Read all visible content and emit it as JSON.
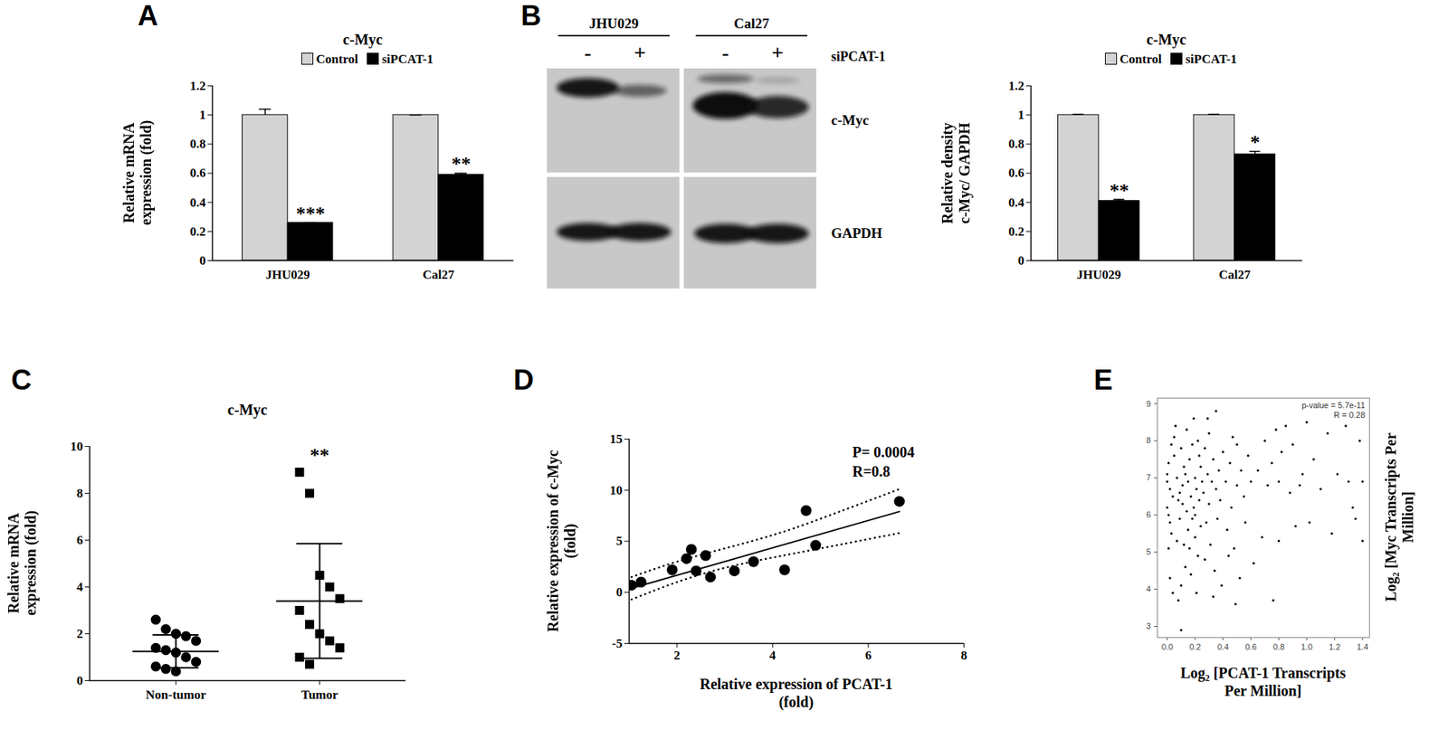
{
  "chart_data": [
    {
      "panel": "A",
      "type": "bar",
      "title": "c-Myc",
      "categories": [
        "JHU029",
        "Cal27"
      ],
      "series": [
        {
          "name": "Control",
          "color": "#d3d3d3",
          "values": [
            1,
            1
          ],
          "errors": [
            0.04,
            0
          ]
        },
        {
          "name": "siPCAT-1",
          "color": "#000000",
          "values": [
            0.26,
            0.59
          ],
          "errors": [
            0,
            0.01
          ],
          "annotations": [
            "***",
            "**"
          ]
        }
      ],
      "ylabel": "Relative mRNA\nexpression (fold)",
      "ylim": [
        0,
        1.2
      ],
      "yticks": [
        0,
        0.2,
        0.4,
        0.6,
        0.8,
        1,
        1.2
      ],
      "legend": "top"
    },
    {
      "panel": "B",
      "type": "bar",
      "title": "c-Myc",
      "categories": [
        "JHU029",
        "Cal27"
      ],
      "series": [
        {
          "name": "Control",
          "color": "#d3d3d3",
          "values": [
            1,
            1
          ],
          "errors": [
            0.005,
            0.005
          ]
        },
        {
          "name": "siPCAT-1",
          "color": "#000000",
          "values": [
            0.41,
            0.73
          ],
          "errors": [
            0.01,
            0.02
          ],
          "annotations": [
            "**",
            "*"
          ]
        }
      ],
      "ylabel": "Relative density\nc-Myc/ GAPDH",
      "ylim": [
        0,
        1.2
      ],
      "yticks": [
        0,
        0.2,
        0.4,
        0.6,
        0.8,
        1,
        1.2
      ],
      "legend": "top"
    },
    {
      "panel": "C",
      "type": "dotplot",
      "title": "c-Myc",
      "categories": [
        "Non-tumor",
        "Tumor"
      ],
      "values": [
        [
          2.6,
          2.2,
          2.0,
          1.9,
          1.7,
          1.4,
          1.3,
          1.2,
          1.0,
          0.8,
          0.6,
          0.5,
          0.4
        ],
        [
          8.9,
          8.0,
          4.5,
          4.0,
          3.5,
          3.0,
          2.4,
          2.0,
          1.7,
          1.4,
          1.0,
          0.7
        ]
      ],
      "means": [
        1.25,
        3.4
      ],
      "errors": [
        0.7,
        2.45
      ],
      "marker": [
        "circle",
        "square"
      ],
      "annotations": [
        null,
        "**"
      ],
      "ylabel": "Relative mRNA\nexpression (fold)",
      "ylim": [
        0,
        10
      ],
      "yticks": [
        0,
        2,
        4,
        6,
        8,
        10
      ]
    },
    {
      "panel": "D",
      "type": "scatter",
      "points": [
        [
          1.05,
          0.7
        ],
        [
          1.25,
          1.0
        ],
        [
          1.9,
          2.2
        ],
        [
          2.2,
          3.3
        ],
        [
          2.3,
          4.2
        ],
        [
          2.4,
          2.1
        ],
        [
          2.6,
          3.6
        ],
        [
          2.7,
          1.5
        ],
        [
          3.2,
          2.1
        ],
        [
          3.6,
          3.0
        ],
        [
          4.25,
          2.2
        ],
        [
          4.7,
          8.0
        ],
        [
          4.9,
          4.6
        ],
        [
          6.65,
          8.9
        ]
      ],
      "fit": {
        "x": [
          1.05,
          6.65
        ],
        "y": [
          0.4,
          7.9
        ]
      },
      "ci_upper": {
        "x": [
          1.05,
          2,
          3,
          4,
          5,
          6.65
        ],
        "y": [
          1.5,
          3.0,
          4.3,
          5.6,
          7.2,
          10.1
        ]
      },
      "ci_lower": {
        "x": [
          1.05,
          2,
          3,
          4,
          5,
          6.65
        ],
        "y": [
          -0.7,
          1.0,
          2.4,
          3.4,
          4.3,
          5.8
        ]
      },
      "annotations": [
        "P= 0.0004",
        "R=0.8"
      ],
      "xlabel": "Relative expression of PCAT-1\n(fold)",
      "ylabel": "Relative expression of c-Myc\n(fold)",
      "xlim": [
        1,
        8
      ],
      "xticks": [
        2,
        4,
        6,
        8
      ],
      "ylim": [
        -5,
        15
      ],
      "yticks": [
        -5,
        0,
        5,
        10,
        15
      ]
    },
    {
      "panel": "E",
      "type": "scatter",
      "points": [
        [
          0.0,
          6.2
        ],
        [
          0.01,
          7.4
        ],
        [
          0.02,
          5.8
        ],
        [
          0.0,
          6.9
        ],
        [
          0.03,
          7.9
        ],
        [
          0.01,
          5.1
        ],
        [
          0.04,
          6.5
        ],
        [
          0.02,
          4.3
        ],
        [
          0.0,
          7.1
        ],
        [
          0.05,
          8.1
        ],
        [
          0.03,
          5.5
        ],
        [
          0.02,
          6.7
        ],
        [
          0.04,
          3.9
        ],
        [
          0.01,
          6.0
        ],
        [
          0.05,
          7.6
        ],
        [
          0.07,
          7.0
        ],
        [
          0.08,
          6.4
        ],
        [
          0.09,
          5.9
        ],
        [
          0.1,
          2.9
        ],
        [
          0.1,
          7.8
        ],
        [
          0.11,
          6.8
        ],
        [
          0.12,
          5.2
        ],
        [
          0.12,
          7.3
        ],
        [
          0.13,
          4.6
        ],
        [
          0.14,
          6.1
        ],
        [
          0.14,
          8.3
        ],
        [
          0.08,
          3.7
        ],
        [
          0.09,
          6.6
        ],
        [
          0.13,
          7.1
        ],
        [
          0.15,
          5.6
        ],
        [
          0.06,
          8.4
        ],
        [
          0.1,
          4.1
        ],
        [
          0.11,
          6.3
        ],
        [
          0.15,
          6.9
        ],
        [
          0.07,
          5.3
        ],
        [
          0.16,
          7.5
        ],
        [
          0.17,
          6.5
        ],
        [
          0.18,
          5.9
        ],
        [
          0.18,
          7.9
        ],
        [
          0.19,
          6.2
        ],
        [
          0.2,
          7.0
        ],
        [
          0.2,
          5.4
        ],
        [
          0.21,
          6.7
        ],
        [
          0.22,
          8.0
        ],
        [
          0.22,
          4.9
        ],
        [
          0.23,
          6.4
        ],
        [
          0.24,
          7.3
        ],
        [
          0.24,
          5.7
        ],
        [
          0.25,
          6.9
        ],
        [
          0.17,
          4.4
        ],
        [
          0.19,
          8.6
        ],
        [
          0.21,
          3.9
        ],
        [
          0.23,
          7.6
        ],
        [
          0.2,
          6.0
        ],
        [
          0.16,
          5.1
        ],
        [
          0.26,
          6.6
        ],
        [
          0.27,
          7.8
        ],
        [
          0.28,
          5.8
        ],
        [
          0.29,
          7.1
        ],
        [
          0.3,
          6.3
        ],
        [
          0.3,
          8.2
        ],
        [
          0.31,
          5.2
        ],
        [
          0.32,
          6.9
        ],
        [
          0.33,
          7.5
        ],
        [
          0.34,
          4.5
        ],
        [
          0.35,
          6.7
        ],
        [
          0.35,
          8.8
        ],
        [
          0.36,
          5.9
        ],
        [
          0.37,
          7.2
        ],
        [
          0.38,
          6.4
        ],
        [
          0.39,
          4.1
        ],
        [
          0.4,
          7.7
        ],
        [
          0.27,
          4.8
        ],
        [
          0.33,
          3.8
        ],
        [
          0.29,
          8.6
        ],
        [
          0.42,
          6.9
        ],
        [
          0.43,
          5.6
        ],
        [
          0.45,
          7.4
        ],
        [
          0.46,
          6.2
        ],
        [
          0.47,
          8.1
        ],
        [
          0.48,
          5.1
        ],
        [
          0.5,
          6.8
        ],
        [
          0.5,
          7.9
        ],
        [
          0.52,
          4.3
        ],
        [
          0.53,
          7.2
        ],
        [
          0.55,
          6.5
        ],
        [
          0.56,
          5.8
        ],
        [
          0.58,
          7.6
        ],
        [
          0.44,
          4.9
        ],
        [
          0.6,
          6.9
        ],
        [
          0.49,
          3.6
        ],
        [
          0.62,
          4.7
        ],
        [
          0.65,
          7.2
        ],
        [
          0.68,
          5.4
        ],
        [
          0.7,
          8.0
        ],
        [
          0.72,
          6.8
        ],
        [
          0.75,
          7.4
        ],
        [
          0.76,
          3.7
        ],
        [
          0.78,
          8.3
        ],
        [
          0.8,
          6.9
        ],
        [
          0.8,
          5.3
        ],
        [
          0.82,
          7.7
        ],
        [
          0.85,
          8.4
        ],
        [
          0.88,
          6.6
        ],
        [
          0.9,
          7.9
        ],
        [
          0.92,
          5.7
        ],
        [
          0.95,
          6.8
        ],
        [
          0.97,
          7.1
        ],
        [
          1.0,
          8.5
        ],
        [
          1.02,
          5.8
        ],
        [
          1.05,
          7.5
        ],
        [
          1.1,
          6.7
        ],
        [
          1.15,
          8.2
        ],
        [
          1.18,
          5.5
        ],
        [
          1.22,
          7.1
        ],
        [
          1.28,
          8.4
        ],
        [
          1.3,
          6.9
        ],
        [
          1.35,
          5.9
        ],
        [
          1.38,
          8.0
        ],
        [
          1.4,
          6.9
        ],
        [
          1.4,
          5.3
        ],
        [
          1.33,
          6.2
        ]
      ],
      "annotations": [
        "p-value = 5.7e-11",
        "R = 0.28"
      ],
      "xlabel": "Log₂ [PCAT-1 Transcripts\nPer Million]",
      "ylabel": "Log₂ [Myc Transcripts Per\nMillion]",
      "xlim": [
        -0.07,
        1.45
      ],
      "xticks": [
        {
          "value": 0,
          "label": "0.0"
        },
        0.2,
        0.4,
        0.6,
        0.8,
        {
          "value": 1,
          "label": "1.0"
        },
        1.2,
        1.4
      ],
      "ylim": [
        2.7,
        9.15
      ],
      "yticks": [
        3,
        4,
        5,
        6,
        7,
        8,
        9
      ]
    }
  ],
  "blot": {
    "panel": "B",
    "cell_lines": [
      "JHU029",
      "Cal27"
    ],
    "lanes": [
      "-",
      "+",
      "-",
      "+"
    ],
    "treatment": "siPCAT-1",
    "bands": [
      "c-Myc",
      "GAPDH"
    ]
  }
}
